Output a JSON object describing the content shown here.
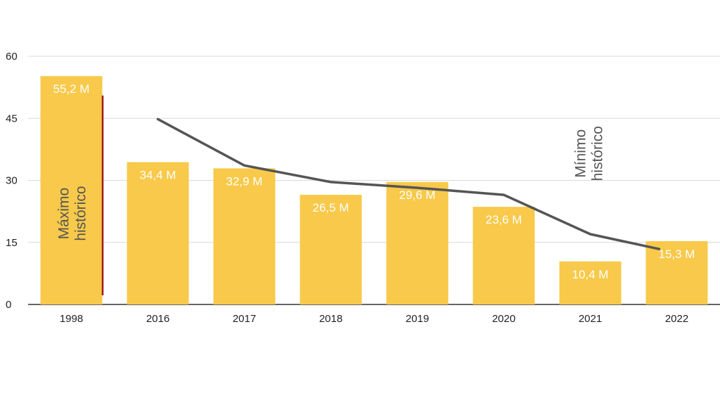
{
  "chart_data": {
    "type": "bar",
    "categories": [
      "1998",
      "2016",
      "2017",
      "2018",
      "2019",
      "2020",
      "2021",
      "2022"
    ],
    "values": [
      55.2,
      34.4,
      32.9,
      26.5,
      29.6,
      23.6,
      10.4,
      15.3
    ],
    "data_labels": [
      "55,2 M",
      "34,4 M",
      "32,9 M",
      "26,5 M",
      "29,6 M",
      "23,6 M",
      "10,4 M",
      "15,3 M"
    ],
    "trend_line": {
      "categories": [
        "2016",
        "2017",
        "2018",
        "2019",
        "2020",
        "2021",
        "2022"
      ],
      "values": [
        44.8,
        33.6,
        29.6,
        28.2,
        26.5,
        17.0,
        13.4
      ]
    },
    "annotations": [
      {
        "category": "1998",
        "lines": [
          "Máximo",
          "histórico"
        ]
      },
      {
        "category": "2021",
        "lines": [
          "Mínimo",
          "histórico"
        ]
      }
    ],
    "yticks": [
      0,
      15,
      30,
      45,
      60
    ],
    "ylim": [
      0,
      60
    ],
    "grid": true,
    "colors": {
      "bar": "#f8c94a",
      "trend": "#555555",
      "divider": "#9e1b1b",
      "grid": "#d9d9d9"
    }
  }
}
